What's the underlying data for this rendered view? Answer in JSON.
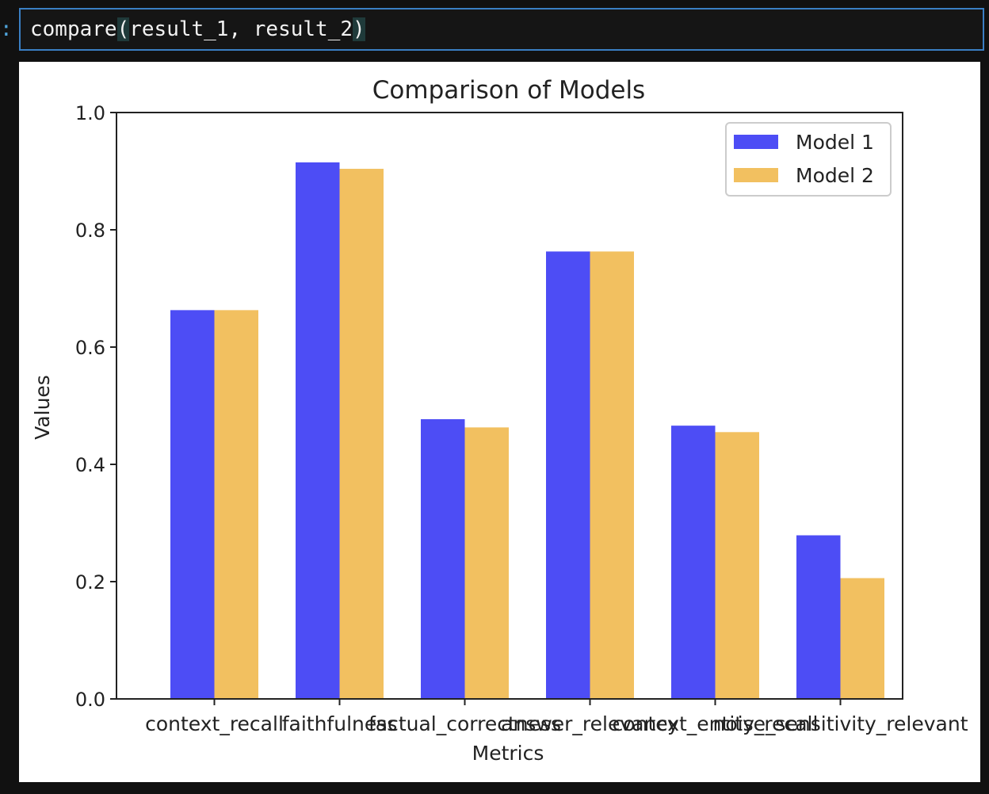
{
  "cell": {
    "prompt": ":",
    "code_fn": "compare",
    "code_open": "(",
    "code_args": "result_1, result_2",
    "code_close": ")"
  },
  "chart_data": {
    "type": "bar",
    "title": "Comparison of Models",
    "xlabel": "Metrics",
    "ylabel": "Values",
    "ylim": [
      0,
      1.0
    ],
    "yticks": [
      "0.0",
      "0.2",
      "0.4",
      "0.6",
      "0.8",
      "1.0"
    ],
    "categories": [
      "context_recall",
      "faithfulness",
      "factual_correctness",
      "answer_relevancy",
      "context_entity_recall",
      "noise_sensitivity_relevant"
    ],
    "series": [
      {
        "name": "Model 1",
        "color": "#4d4df5",
        "values": [
          0.663,
          0.915,
          0.477,
          0.763,
          0.466,
          0.279
        ]
      },
      {
        "name": "Model 2",
        "color": "#f2c060",
        "values": [
          0.663,
          0.904,
          0.463,
          0.763,
          0.455,
          0.206
        ]
      }
    ],
    "legend": "top-right",
    "grid": false
  }
}
